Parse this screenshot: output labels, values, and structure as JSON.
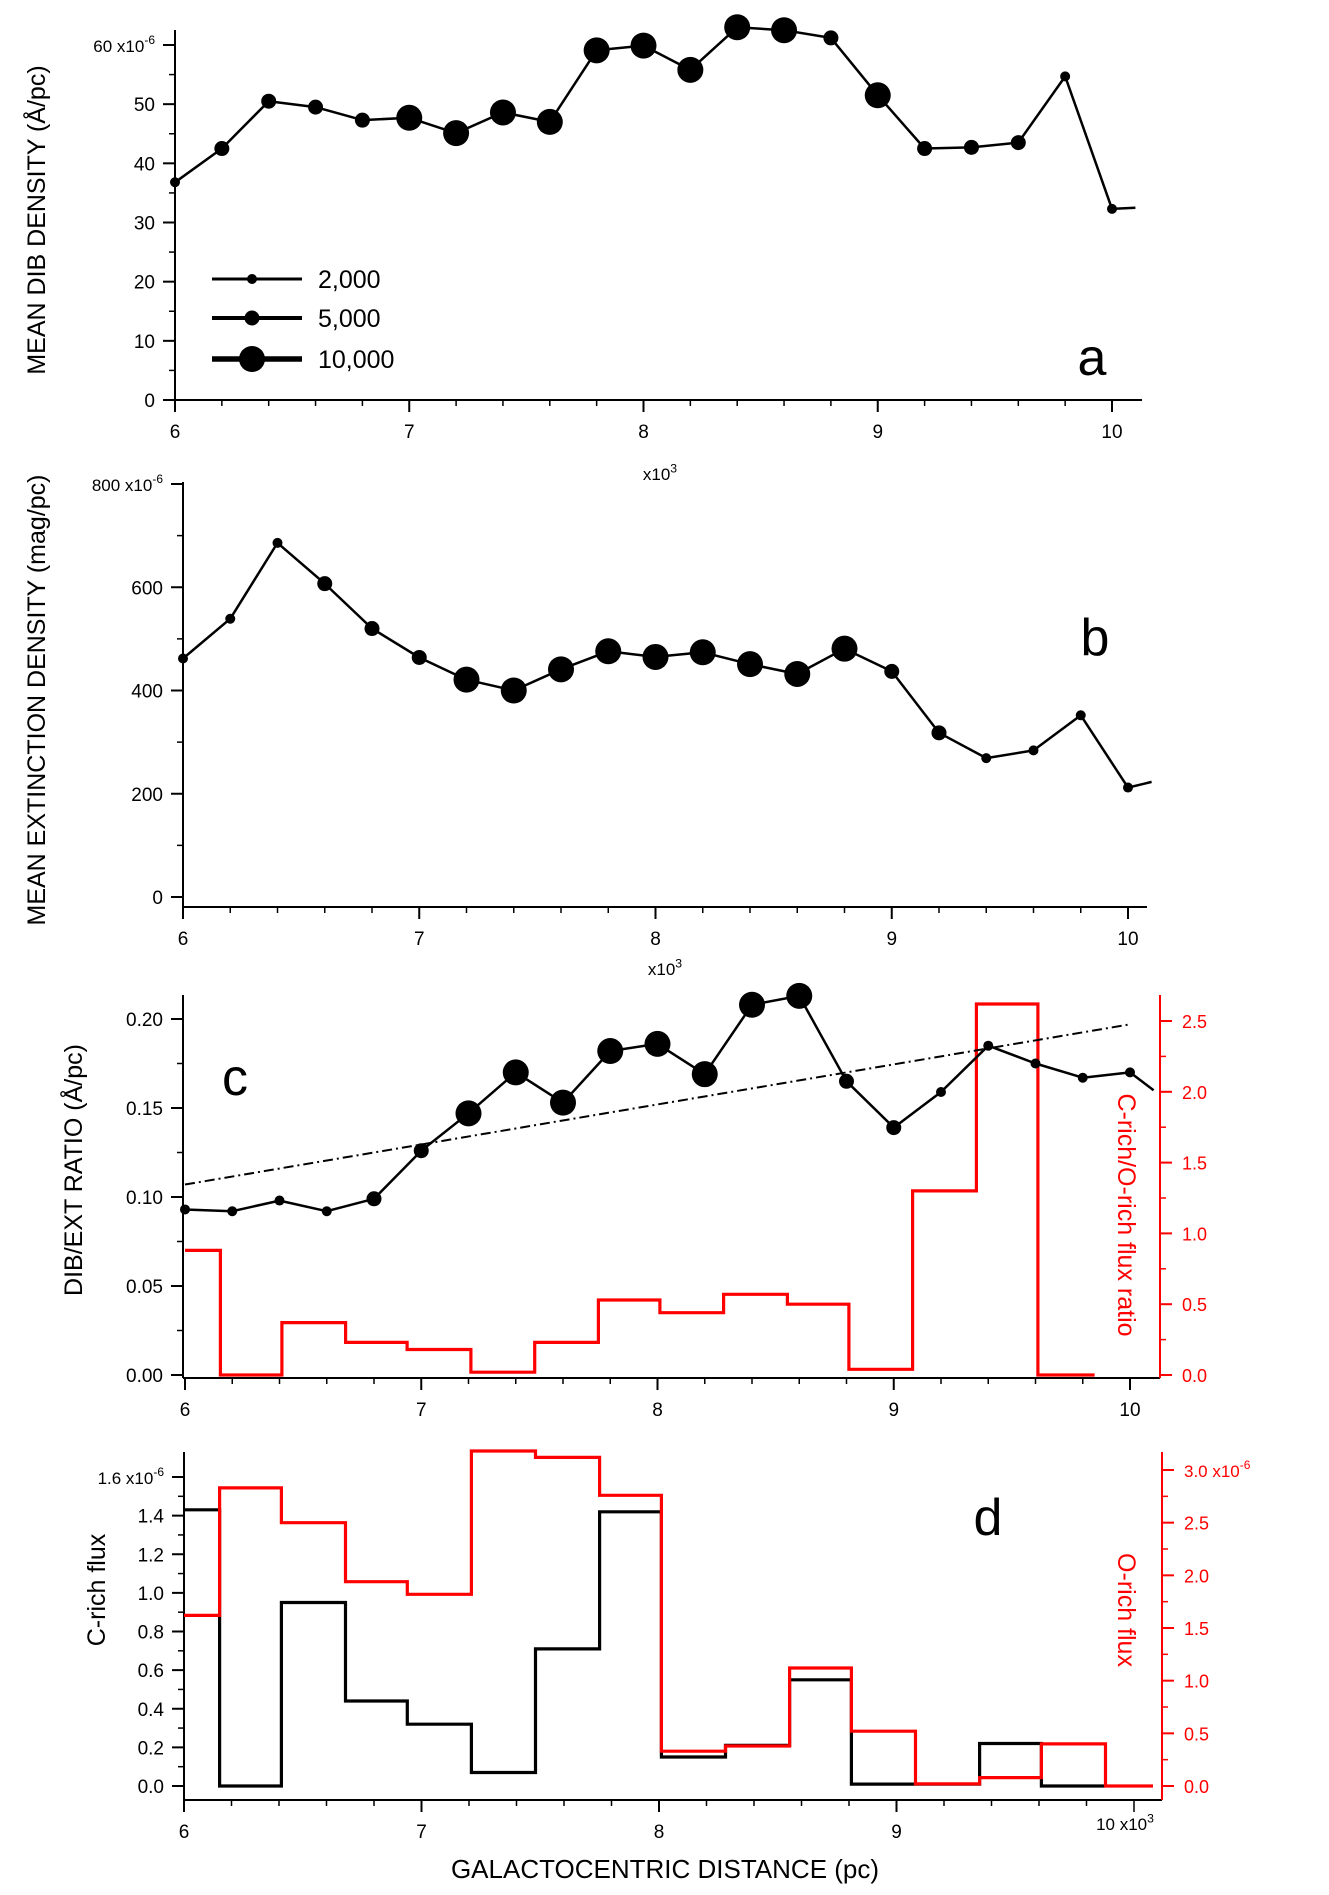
{
  "chart_data": [
    {
      "panel": "a",
      "type": "scatter",
      "panel_letter": "a",
      "ylabel": "MEAN DIB DENSITY (Å/pc)",
      "y_multiplier": "x10",
      "y_multiplier_exp": "-6",
      "x_multiplier": "x10",
      "x_multiplier_exp": "3",
      "xlim": [
        6.0,
        10.1
      ],
      "ylim": [
        0,
        63
      ],
      "x_ticks": [
        6,
        7,
        8,
        9,
        10
      ],
      "y_ticks": [
        0,
        10,
        20,
        30,
        40,
        50,
        60
      ],
      "legend": {
        "placement": "middle-left",
        "entries": [
          {
            "label": "2,000",
            "size": "small"
          },
          {
            "label": "5,000",
            "size": "medium"
          },
          {
            "label": "10,000",
            "size": "large"
          }
        ]
      },
      "series": [
        {
          "x": [
            6.0,
            6.2,
            6.4,
            6.6,
            6.8,
            7.0,
            7.2,
            7.4,
            7.6,
            7.8,
            8.0,
            8.2,
            8.4,
            8.6,
            8.8,
            9.0,
            9.2,
            9.4,
            9.6,
            9.8,
            10.0
          ],
          "y": [
            36.8,
            42.5,
            50.5,
            49.5,
            47.3,
            47.7,
            45.1,
            48.6,
            47.0,
            59.1,
            59.9,
            55.8,
            63.0,
            62.5,
            61.2,
            51.5,
            42.5,
            42.7,
            43.5,
            54.7,
            32.3
          ],
          "marker_size": [
            "small",
            "medium",
            "medium",
            "medium",
            "medium",
            "large",
            "large",
            "large",
            "large",
            "large",
            "large",
            "large",
            "large",
            "large",
            "medium",
            "large",
            "medium",
            "medium",
            "medium",
            "small",
            "small"
          ],
          "end": {
            "x": 10.1,
            "y": 32.5
          }
        }
      ]
    },
    {
      "panel": "b",
      "type": "scatter",
      "panel_letter": "b",
      "ylabel": "MEAN EXTINCTION DENSITY (mag/pc)",
      "y_multiplier": "x10",
      "y_multiplier_exp": "-6",
      "x_multiplier": "x10",
      "x_multiplier_exp": "3",
      "xlim": [
        6.0,
        10.1
      ],
      "ylim": [
        0,
        800
      ],
      "x_ticks": [
        6,
        7,
        8,
        9,
        10
      ],
      "y_ticks": [
        0,
        200,
        400,
        600,
        800
      ],
      "series": [
        {
          "x": [
            6.0,
            6.2,
            6.4,
            6.6,
            6.8,
            7.0,
            7.2,
            7.4,
            7.6,
            7.8,
            8.0,
            8.2,
            8.4,
            8.6,
            8.8,
            9.0,
            9.2,
            9.4,
            9.6,
            9.8,
            10.0
          ],
          "y": [
            462,
            539,
            686,
            607,
            520,
            464,
            421,
            400,
            441,
            476,
            465,
            474,
            451,
            432,
            481,
            437,
            318,
            269,
            284,
            352,
            212
          ],
          "marker_size": [
            "small",
            "small",
            "small",
            "medium",
            "medium",
            "medium",
            "large",
            "large",
            "large",
            "large",
            "large",
            "large",
            "large",
            "large",
            "large",
            "medium",
            "medium",
            "small",
            "small",
            "small",
            "small"
          ],
          "end": {
            "x": 10.1,
            "y": 223
          }
        }
      ]
    },
    {
      "panel": "c",
      "type": "scatter",
      "panel_letter": "c",
      "ylabel": "DIB/EXT RATIO (Å/pc)",
      "ylabel_right": "C-rich/O-rich flux ratio",
      "x_multiplier": "x10",
      "x_multiplier_exp": "3",
      "xlim": [
        6.0,
        10.1
      ],
      "ylim": [
        0,
        0.22
      ],
      "ylim_right": [
        0,
        2.7
      ],
      "x_ticks": [
        6,
        7,
        8,
        9,
        10
      ],
      "y_ticks": [
        "0.00",
        "0.05",
        "0.10",
        "0.15",
        "0.20"
      ],
      "y_ticks_right": [
        "0.0",
        "0.5",
        "1.0",
        "1.5",
        "2.0",
        "2.5"
      ],
      "series": [
        {
          "x": [
            6.0,
            6.2,
            6.4,
            6.6,
            6.8,
            7.0,
            7.2,
            7.4,
            7.6,
            7.8,
            8.0,
            8.2,
            8.4,
            8.6,
            8.8,
            9.0,
            9.2,
            9.4,
            9.6,
            9.8,
            10.0
          ],
          "y": [
            0.093,
            0.092,
            0.098,
            0.092,
            0.099,
            0.126,
            0.147,
            0.17,
            0.153,
            0.182,
            0.186,
            0.169,
            0.208,
            0.213,
            0.165,
            0.139,
            0.159,
            0.185,
            0.175,
            0.167,
            0.17
          ],
          "marker_size": [
            "small",
            "small",
            "small",
            "small",
            "medium",
            "medium",
            "large",
            "large",
            "large",
            "large",
            "large",
            "large",
            "large",
            "large",
            "medium",
            "medium",
            "small",
            "small",
            "small",
            "small",
            "small"
          ],
          "end": {
            "x": 10.1,
            "y": 0.16
          }
        },
        {
          "style": "dash-dot trend",
          "x": [
            6.0,
            10.0
          ],
          "y": [
            0.107,
            0.197
          ]
        },
        {
          "style": "step",
          "color": "#ff0000",
          "axis": "right",
          "edges": [
            6.0,
            6.15,
            6.41,
            6.68,
            6.94,
            7.21,
            7.48,
            7.75,
            8.01,
            8.28,
            8.55,
            8.81,
            9.08,
            9.35,
            9.61,
            9.85
          ],
          "values": [
            0.88,
            0.0,
            0.37,
            0.23,
            0.18,
            0.02,
            0.23,
            0.53,
            0.44,
            0.57,
            0.5,
            0.04,
            1.3,
            2.62,
            0.0
          ]
        }
      ]
    },
    {
      "panel": "d",
      "type": "line",
      "panel_letter": "d",
      "xlabel": "GALACTOCENTRIC DISTANCE (pc)",
      "ylabel": "C-rich flux",
      "ylabel_right": "O-rich flux",
      "y_multiplier": "x10",
      "y_multiplier_exp": "-6",
      "y_multiplier_right": "x10",
      "y_multiplier_right_exp": "-6",
      "x_multiplier": "10 x10",
      "x_multiplier_exp": "3",
      "xlim": [
        6.0,
        10.1
      ],
      "ylim": [
        0,
        1.62
      ],
      "ylim_right": [
        0,
        3.3
      ],
      "x_ticks": [
        6,
        7,
        8,
        9
      ],
      "y_ticks": [
        "0.0",
        "0.2",
        "0.4",
        "0.6",
        "0.8",
        "1.0",
        "1.2",
        "1.4",
        "1.6"
      ],
      "y_ticks_right": [
        "0.0",
        "0.5",
        "1.0",
        "1.5",
        "2.0",
        "2.5",
        "3.0"
      ],
      "series": [
        {
          "style": "step",
          "color": "#000000",
          "axis": "left",
          "edges": [
            6.0,
            6.15,
            6.41,
            6.68,
            6.94,
            7.21,
            7.48,
            7.75,
            8.01,
            8.28,
            8.55,
            8.81,
            9.08,
            9.35,
            9.61,
            9.88
          ],
          "values": [
            1.43,
            0.0,
            0.95,
            0.44,
            0.32,
            0.07,
            0.71,
            1.42,
            0.15,
            0.21,
            0.55,
            0.01,
            0.01,
            0.22,
            0.0
          ]
        },
        {
          "style": "step",
          "color": "#ff0000",
          "axis": "right",
          "edges": [
            6.0,
            6.15,
            6.41,
            6.68,
            6.94,
            7.21,
            7.48,
            7.75,
            8.01,
            8.28,
            8.55,
            8.81,
            9.08,
            9.35,
            9.61,
            9.88,
            10.08
          ],
          "values": [
            1.62,
            2.83,
            2.5,
            1.94,
            1.82,
            3.18,
            3.12,
            2.76,
            0.33,
            0.38,
            1.12,
            0.52,
            0.02,
            0.08,
            0.4,
            0.0
          ]
        }
      ]
    }
  ]
}
